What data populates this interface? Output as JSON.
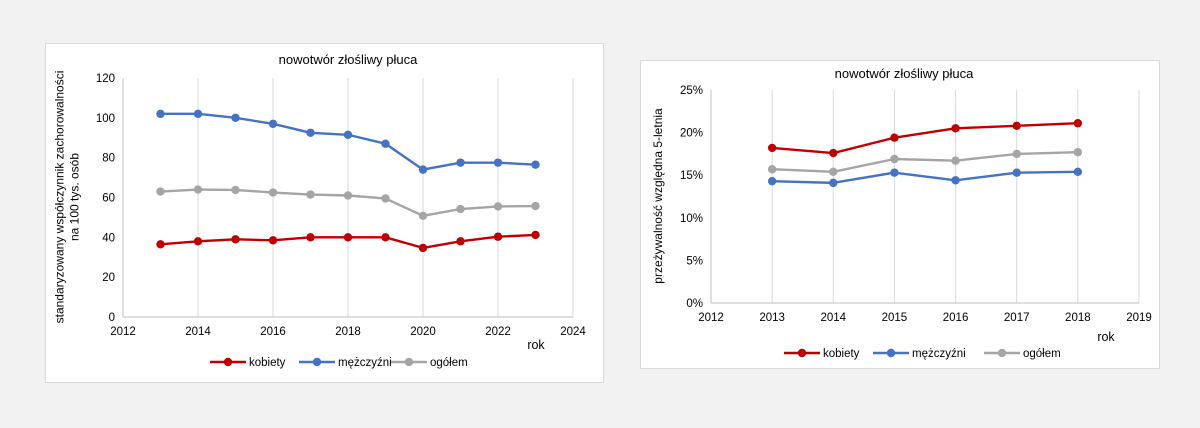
{
  "colors": {
    "kobiety": "#c00000",
    "mezczyzni": "#4472c4",
    "ogolem": "#a5a5a5",
    "grid": "#d9d9d9",
    "background": "#f2f2f2"
  },
  "chart_data": [
    {
      "type": "line",
      "title": "nowotwór złośliwy płuca",
      "xlabel": "rok",
      "ylabel_lines": [
        "standaryzowany współczynnik zachorowalności",
        "na 100 tys. osób"
      ],
      "xlim": [
        2012,
        2024
      ],
      "ylim": [
        0,
        120
      ],
      "x_ticks": [
        2012,
        2014,
        2016,
        2018,
        2020,
        2022,
        2024
      ],
      "y_ticks": [
        0,
        20,
        40,
        60,
        80,
        100,
        120
      ],
      "y_tick_labels": [
        "0",
        "20",
        "40",
        "60",
        "80",
        "100",
        "120"
      ],
      "grid": "vertical",
      "legend": "bottom",
      "x": [
        2013,
        2014,
        2015,
        2016,
        2017,
        2018,
        2019,
        2020,
        2021,
        2022,
        2023
      ],
      "series": [
        {
          "name": "kobiety",
          "key": "kobiety",
          "values": [
            36.5,
            38,
            39,
            38.5,
            40,
            40,
            40,
            34.7,
            38,
            40.3,
            41.2
          ]
        },
        {
          "name": "mężczyźni",
          "key": "mezczyzni",
          "values": [
            102,
            102,
            100,
            97,
            92.5,
            91.5,
            87,
            74,
            77.5,
            77.5,
            76.5
          ]
        },
        {
          "name": "ogółem",
          "key": "ogolem",
          "values": [
            63,
            64,
            63.8,
            62.5,
            61.5,
            61,
            59.5,
            50.8,
            54.2,
            55.5,
            55.7
          ]
        }
      ]
    },
    {
      "type": "line",
      "title": "nowotwór złośliwy płuca",
      "xlabel": "rok",
      "ylabel_lines": [
        "przeżywalność względna 5-letnia"
      ],
      "xlim": [
        2012,
        2019
      ],
      "ylim": [
        0,
        25
      ],
      "x_ticks": [
        2012,
        2013,
        2014,
        2015,
        2016,
        2017,
        2018,
        2019
      ],
      "y_ticks": [
        0,
        5,
        10,
        15,
        20,
        25
      ],
      "y_tick_labels": [
        "0%",
        "5%",
        "10%",
        "15%",
        "20%",
        "25%"
      ],
      "grid": "vertical",
      "legend": "bottom",
      "x": [
        2013,
        2014,
        2015,
        2016,
        2017,
        2018
      ],
      "series": [
        {
          "name": "kobiety",
          "key": "kobiety",
          "values": [
            18.2,
            17.6,
            19.4,
            20.5,
            20.8,
            21.1
          ]
        },
        {
          "name": "mężczyźni",
          "key": "mezczyzni",
          "values": [
            14.3,
            14.1,
            15.3,
            14.4,
            15.3,
            15.4
          ]
        },
        {
          "name": "ogółem",
          "key": "ogolem",
          "values": [
            15.7,
            15.4,
            16.9,
            16.7,
            17.5,
            17.7
          ]
        }
      ]
    }
  ]
}
